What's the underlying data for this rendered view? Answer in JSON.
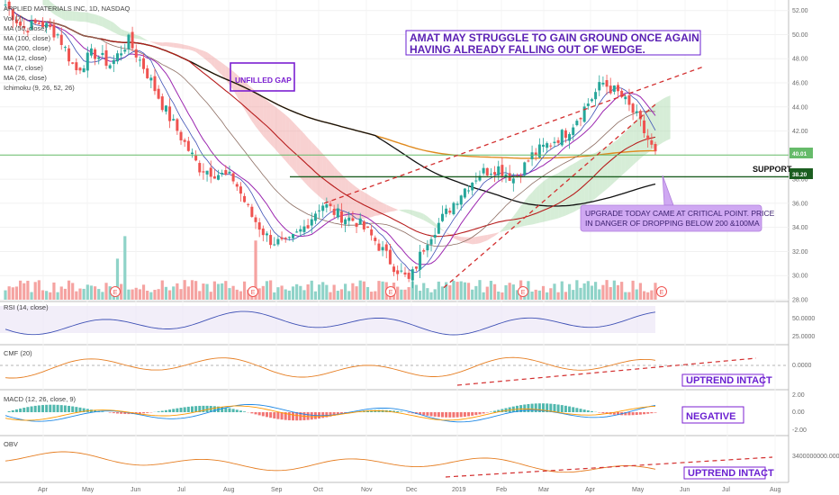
{
  "header": {
    "symbol_line": "APPLIED MATERIALS INC, 1D, NASDAQ"
  },
  "legend": {
    "items": [
      "Vol (7)",
      "MA (50, close)",
      "MA (100, close)",
      "MA (200, close)",
      "MA (12, close)",
      "MA (7, close)",
      "MA (26, close)",
      "Ichimoku (9, 26, 52, 26)"
    ]
  },
  "annotations": {
    "title_line1": "AMAT MAY STRUGGLE TO GAIN GROUND ONCE AGAIN",
    "title_line2": "HAVING ALREADY FALLING OUT OF WEDGE.",
    "unfilled_gap": "UNFILLED GAP",
    "support": "SUPPORT",
    "upgrade_line1": "UPGRADE TODAY CAME AT CRITICAL POINT. PRICE",
    "upgrade_line2": "IN DANGER OF DROPPING BELOW 200 &100MA",
    "cmf_note": "UPTREND INTACT",
    "macd_note": "NEGATIVE",
    "obv_note": "UPTREND INTACT",
    "earnings_marker": "E"
  },
  "price_badges": {
    "current": "40.01",
    "support": "38.20"
  },
  "colors": {
    "title": "#5a1fb3",
    "box_border": "#6a1fd1",
    "upgrade_bg": "#cfa8f2",
    "support_line": "#1b5e20",
    "current_line": "#66bb6a",
    "up": "#26a69a",
    "down": "#ef5350",
    "ma50": "#b71c1c",
    "ma100": "#111111",
    "ma200": "#e08a1e",
    "ma12": "#9c27b0",
    "ma7": "#3f51b5",
    "cloud_up": "#a5d6a7",
    "cloud_down": "#ef9a9a",
    "rsi": "#3f51b5",
    "cmf": "#e67e22",
    "obv": "#e67e22",
    "trend": "#d32f2f"
  },
  "axes": {
    "price_ticks": [
      "52.00",
      "50.00",
      "48.00",
      "46.00",
      "44.00",
      "42.00",
      "40.00",
      "38.00",
      "36.00",
      "34.00",
      "32.00",
      "30.00",
      "28.00"
    ],
    "rsi_ticks": [
      "50.0000",
      "25.0000"
    ],
    "cmf_ticks": [
      "0.0000"
    ],
    "macd_ticks": [
      "2.00",
      "0.00",
      "-2.00"
    ],
    "obv_ticks": [
      "3400000000.000"
    ],
    "months": [
      "Apr",
      "May",
      "Jun",
      "Jul",
      "Aug",
      "Sep",
      "Oct",
      "Nov",
      "Dec",
      "2019",
      "Feb",
      "Mar",
      "Apr",
      "May",
      "Jun",
      "Jul",
      "Aug"
    ]
  },
  "chart_data": [
    {
      "type": "candlestick",
      "title": "APPLIED MATERIALS INC, 1D, NASDAQ",
      "ylim": [
        28,
        52.5
      ],
      "x": [
        "Apr",
        "May",
        "Jun",
        "Jul",
        "Aug",
        "Sep",
        "Oct",
        "Nov",
        "Dec",
        "2019",
        "Feb",
        "Mar",
        "Apr",
        "May"
      ],
      "close_path": [
        52.5,
        50.5,
        51,
        50,
        47,
        48.5,
        47.5,
        49.5,
        47,
        44,
        41.5,
        39,
        38.5,
        38,
        35,
        33,
        32.5,
        34,
        36,
        35,
        34.5,
        33,
        31,
        29.5,
        33,
        35,
        37,
        38.5,
        39,
        38,
        40,
        41,
        42,
        44,
        46,
        45,
        43,
        40
      ],
      "price_levels": {
        "current": 40.01,
        "support": 38.2
      },
      "series": [
        {
          "name": "MA (50, close)"
        },
        {
          "name": "MA (100, close)"
        },
        {
          "name": "MA (200, close)"
        },
        {
          "name": "MA (12, close)"
        },
        {
          "name": "MA (7, close)"
        },
        {
          "name": "Ichimoku (9, 26, 52, 26)"
        },
        {
          "name": "Vol (7)"
        }
      ]
    },
    {
      "type": "line",
      "title": "RSI (14, close)",
      "ticks": [
        50,
        25
      ]
    },
    {
      "type": "line",
      "title": "CMF (20)",
      "ticks": [
        0
      ]
    },
    {
      "type": "bar",
      "title": "MACD (12, 26, close, 9)",
      "ticks": [
        2,
        0,
        -2
      ]
    },
    {
      "type": "line",
      "title": "OBV",
      "ticks": [
        3400000000
      ]
    }
  ]
}
